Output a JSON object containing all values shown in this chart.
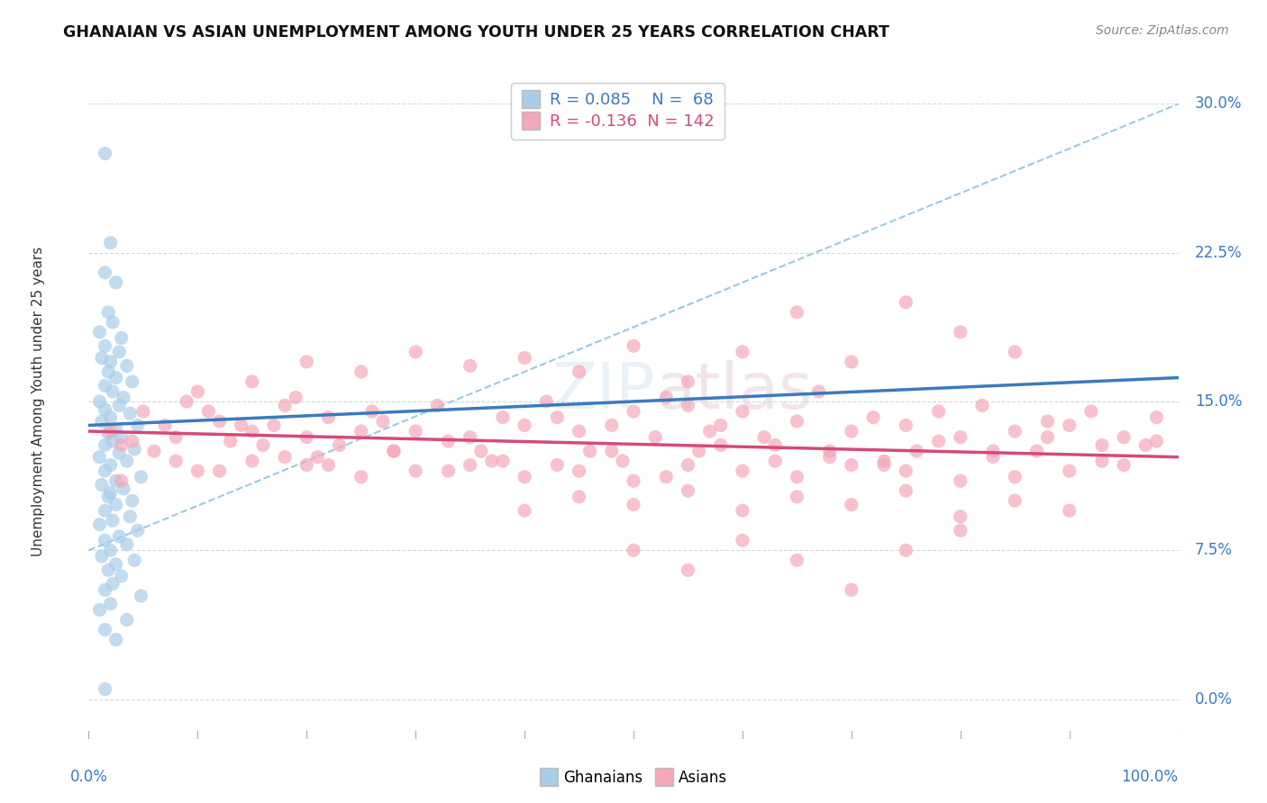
{
  "title": "GHANAIAN VS ASIAN UNEMPLOYMENT AMONG YOUTH UNDER 25 YEARS CORRELATION CHART",
  "source": "Source: ZipAtlas.com",
  "ylabel": "Unemployment Among Youth under 25 years",
  "xlim": [
    0,
    100
  ],
  "ylim": [
    -2,
    32
  ],
  "yticks": [
    0,
    7.5,
    15,
    22.5,
    30
  ],
  "ytick_labels": [
    "0.0%",
    "7.5%",
    "15.0%",
    "22.5%",
    "30.0%"
  ],
  "legend_r_blue": "R = 0.085",
  "legend_n_blue": "N =  68",
  "legend_r_pink": "R = -0.136",
  "legend_n_pink": "N = 142",
  "blue_color": "#a8cde8",
  "pink_color": "#f4a7b9",
  "blue_line_color": "#3a7abf",
  "pink_line_color": "#d44a7a",
  "blue_dash_color": "#90c4e0",
  "watermark_color": "#d8e8f0",
  "watermark_text": "ZIPatlas",
  "background_color": "#ffffff",
  "grid_color": "#d0d8e0",
  "blue_regression": [
    0,
    100,
    13.8,
    16.2
  ],
  "pink_regression": [
    0,
    100,
    13.5,
    12.2
  ],
  "blue_dash_line": [
    0,
    100,
    7.5,
    30.0
  ],
  "blue_scatter": [
    [
      1.5,
      27.5
    ],
    [
      2.0,
      23.0
    ],
    [
      1.5,
      21.5
    ],
    [
      2.5,
      21.0
    ],
    [
      1.8,
      19.5
    ],
    [
      2.2,
      19.0
    ],
    [
      1.0,
      18.5
    ],
    [
      3.0,
      18.2
    ],
    [
      1.5,
      17.8
    ],
    [
      2.8,
      17.5
    ],
    [
      1.2,
      17.2
    ],
    [
      2.0,
      17.0
    ],
    [
      3.5,
      16.8
    ],
    [
      1.8,
      16.5
    ],
    [
      2.5,
      16.2
    ],
    [
      4.0,
      16.0
    ],
    [
      1.5,
      15.8
    ],
    [
      2.2,
      15.5
    ],
    [
      3.2,
      15.2
    ],
    [
      1.0,
      15.0
    ],
    [
      2.8,
      14.8
    ],
    [
      1.5,
      14.6
    ],
    [
      3.8,
      14.4
    ],
    [
      2.0,
      14.2
    ],
    [
      1.2,
      14.0
    ],
    [
      4.5,
      13.8
    ],
    [
      2.5,
      13.6
    ],
    [
      1.8,
      13.4
    ],
    [
      3.0,
      13.2
    ],
    [
      2.2,
      13.0
    ],
    [
      1.5,
      12.8
    ],
    [
      4.2,
      12.6
    ],
    [
      2.8,
      12.4
    ],
    [
      1.0,
      12.2
    ],
    [
      3.5,
      12.0
    ],
    [
      2.0,
      11.8
    ],
    [
      1.5,
      11.5
    ],
    [
      4.8,
      11.2
    ],
    [
      2.5,
      11.0
    ],
    [
      1.2,
      10.8
    ],
    [
      3.2,
      10.6
    ],
    [
      2.0,
      10.4
    ],
    [
      1.8,
      10.2
    ],
    [
      4.0,
      10.0
    ],
    [
      2.5,
      9.8
    ],
    [
      1.5,
      9.5
    ],
    [
      3.8,
      9.2
    ],
    [
      2.2,
      9.0
    ],
    [
      1.0,
      8.8
    ],
    [
      4.5,
      8.5
    ],
    [
      2.8,
      8.2
    ],
    [
      1.5,
      8.0
    ],
    [
      3.5,
      7.8
    ],
    [
      2.0,
      7.5
    ],
    [
      1.2,
      7.2
    ],
    [
      4.2,
      7.0
    ],
    [
      2.5,
      6.8
    ],
    [
      1.8,
      6.5
    ],
    [
      3.0,
      6.2
    ],
    [
      2.2,
      5.8
    ],
    [
      1.5,
      5.5
    ],
    [
      4.8,
      5.2
    ],
    [
      2.0,
      4.8
    ],
    [
      1.0,
      4.5
    ],
    [
      3.5,
      4.0
    ],
    [
      1.5,
      3.5
    ],
    [
      2.5,
      3.0
    ],
    [
      1.5,
      0.5
    ]
  ],
  "pink_scatter": [
    [
      2.0,
      13.5
    ],
    [
      5.0,
      14.5
    ],
    [
      7.0,
      13.8
    ],
    [
      10.0,
      15.5
    ],
    [
      3.0,
      12.8
    ],
    [
      8.0,
      13.2
    ],
    [
      12.0,
      14.0
    ],
    [
      15.0,
      13.5
    ],
    [
      18.0,
      14.8
    ],
    [
      20.0,
      13.2
    ],
    [
      6.0,
      12.5
    ],
    [
      9.0,
      15.0
    ],
    [
      14.0,
      13.8
    ],
    [
      16.0,
      12.8
    ],
    [
      22.0,
      14.2
    ],
    [
      25.0,
      13.5
    ],
    [
      4.0,
      13.0
    ],
    [
      11.0,
      14.5
    ],
    [
      13.0,
      13.0
    ],
    [
      19.0,
      15.2
    ],
    [
      23.0,
      12.8
    ],
    [
      27.0,
      14.0
    ],
    [
      30.0,
      13.5
    ],
    [
      28.0,
      12.5
    ],
    [
      32.0,
      14.8
    ],
    [
      35.0,
      13.2
    ],
    [
      17.0,
      13.8
    ],
    [
      21.0,
      12.2
    ],
    [
      26.0,
      14.5
    ],
    [
      33.0,
      13.0
    ],
    [
      38.0,
      14.2
    ],
    [
      40.0,
      13.8
    ],
    [
      36.0,
      12.5
    ],
    [
      42.0,
      15.0
    ],
    [
      45.0,
      13.5
    ],
    [
      37.0,
      12.0
    ],
    [
      43.0,
      14.2
    ],
    [
      48.0,
      13.8
    ],
    [
      50.0,
      14.5
    ],
    [
      46.0,
      12.5
    ],
    [
      52.0,
      13.2
    ],
    [
      55.0,
      14.8
    ],
    [
      57.0,
      13.5
    ],
    [
      49.0,
      12.0
    ],
    [
      53.0,
      15.2
    ],
    [
      58.0,
      13.8
    ],
    [
      60.0,
      14.5
    ],
    [
      56.0,
      12.5
    ],
    [
      62.0,
      13.2
    ],
    [
      65.0,
      14.0
    ],
    [
      63.0,
      12.8
    ],
    [
      67.0,
      15.5
    ],
    [
      70.0,
      13.5
    ],
    [
      68.0,
      12.2
    ],
    [
      72.0,
      14.2
    ],
    [
      75.0,
      13.8
    ],
    [
      73.0,
      12.0
    ],
    [
      78.0,
      14.5
    ],
    [
      80.0,
      13.2
    ],
    [
      76.0,
      12.5
    ],
    [
      82.0,
      14.8
    ],
    [
      85.0,
      13.5
    ],
    [
      83.0,
      12.2
    ],
    [
      88.0,
      14.0
    ],
    [
      90.0,
      13.8
    ],
    [
      87.0,
      12.5
    ],
    [
      92.0,
      14.5
    ],
    [
      95.0,
      13.2
    ],
    [
      93.0,
      12.0
    ],
    [
      98.0,
      14.2
    ],
    [
      97.0,
      12.8
    ],
    [
      10.0,
      11.5
    ],
    [
      15.0,
      12.0
    ],
    [
      20.0,
      11.8
    ],
    [
      25.0,
      11.2
    ],
    [
      30.0,
      11.5
    ],
    [
      35.0,
      11.8
    ],
    [
      40.0,
      11.2
    ],
    [
      45.0,
      11.5
    ],
    [
      50.0,
      11.0
    ],
    [
      55.0,
      11.8
    ],
    [
      60.0,
      11.5
    ],
    [
      65.0,
      11.2
    ],
    [
      70.0,
      11.8
    ],
    [
      75.0,
      11.5
    ],
    [
      80.0,
      11.0
    ],
    [
      85.0,
      11.2
    ],
    [
      90.0,
      11.5
    ],
    [
      95.0,
      11.8
    ],
    [
      15.0,
      16.0
    ],
    [
      20.0,
      17.0
    ],
    [
      25.0,
      16.5
    ],
    [
      30.0,
      17.5
    ],
    [
      35.0,
      16.8
    ],
    [
      40.0,
      17.2
    ],
    [
      45.0,
      16.5
    ],
    [
      50.0,
      17.8
    ],
    [
      55.0,
      16.0
    ],
    [
      60.0,
      17.5
    ],
    [
      65.0,
      19.5
    ],
    [
      70.0,
      17.0
    ],
    [
      75.0,
      20.0
    ],
    [
      80.0,
      18.5
    ],
    [
      85.0,
      17.5
    ],
    [
      40.0,
      9.5
    ],
    [
      45.0,
      10.2
    ],
    [
      50.0,
      9.8
    ],
    [
      55.0,
      10.5
    ],
    [
      60.0,
      9.5
    ],
    [
      65.0,
      10.2
    ],
    [
      70.0,
      9.8
    ],
    [
      75.0,
      10.5
    ],
    [
      80.0,
      9.2
    ],
    [
      85.0,
      10.0
    ],
    [
      90.0,
      9.5
    ],
    [
      50.0,
      7.5
    ],
    [
      55.0,
      6.5
    ],
    [
      60.0,
      8.0
    ],
    [
      65.0,
      7.0
    ],
    [
      70.0,
      5.5
    ],
    [
      75.0,
      7.5
    ],
    [
      80.0,
      8.5
    ],
    [
      3.0,
      11.0
    ],
    [
      8.0,
      12.0
    ],
    [
      12.0,
      11.5
    ],
    [
      18.0,
      12.2
    ],
    [
      22.0,
      11.8
    ],
    [
      28.0,
      12.5
    ],
    [
      33.0,
      11.5
    ],
    [
      38.0,
      12.0
    ],
    [
      43.0,
      11.8
    ],
    [
      48.0,
      12.5
    ],
    [
      53.0,
      11.2
    ],
    [
      58.0,
      12.8
    ],
    [
      63.0,
      12.0
    ],
    [
      68.0,
      12.5
    ],
    [
      73.0,
      11.8
    ],
    [
      78.0,
      13.0
    ],
    [
      83.0,
      12.5
    ],
    [
      88.0,
      13.2
    ],
    [
      93.0,
      12.8
    ],
    [
      98.0,
      13.0
    ]
  ]
}
